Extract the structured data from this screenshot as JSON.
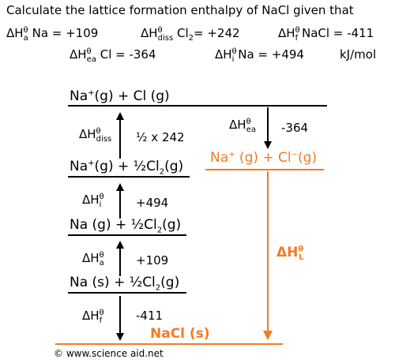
{
  "question": {
    "line1": "Calculate the lattice formation enthalpy of NaCl given that",
    "a": {
      "sup": "θ",
      "sub": "a",
      "text": "Na = +109"
    },
    "diss": {
      "sup": "θ",
      "sub": "diss",
      "text": "Cl",
      "sub2": "2",
      "tail": "= +242"
    },
    "f": {
      "sup": "θ",
      "sub": "f",
      "text": "NaCl = -411"
    },
    "ea": {
      "sup": "θ",
      "sub": "ea",
      "text": "Cl = -364"
    },
    "i": {
      "sup": "θ",
      "sub": "i",
      "text": "Na = +494"
    },
    "units": "kJ/mol"
  },
  "delta": "ΔH",
  "levels": {
    "top": {
      "a": "Na",
      "sup": "+",
      "b": "(g) + Cl (g)"
    },
    "ea_level": {
      "a": "Na",
      "sup": "+",
      "b": " (g) + Cl",
      "sup2": "−",
      "c": "(g)"
    },
    "l3": {
      "a": "Na",
      "sup": "+",
      "b": "(g) + ½Cl",
      "sub": "2",
      "c": "(g)"
    },
    "l2": {
      "a": "Na (g) + ½Cl",
      "sub": "2",
      "c": "(g)"
    },
    "l1": {
      "a": "Na (s) + ½Cl",
      "sub": "2",
      "c": "(g)"
    },
    "bottom": "NaCl (s)"
  },
  "steps": {
    "diss": {
      "sup": "θ",
      "sub": "diss",
      "value": "½ x 242"
    },
    "ea": {
      "sup": "θ",
      "sub": "ea",
      "value": "-364"
    },
    "i": {
      "sup": "θ",
      "sub": "i",
      "value": "+494"
    },
    "a": {
      "sup": "θ",
      "sub": "a",
      "value": "+109"
    },
    "f": {
      "sup": "θ",
      "sub": "f",
      "value": "-411"
    },
    "lattice": {
      "sup": "θ",
      "sub": "L"
    }
  },
  "colors": {
    "accent": "#f47b20",
    "line": "#000000"
  },
  "credit": "© www.science aid.net"
}
